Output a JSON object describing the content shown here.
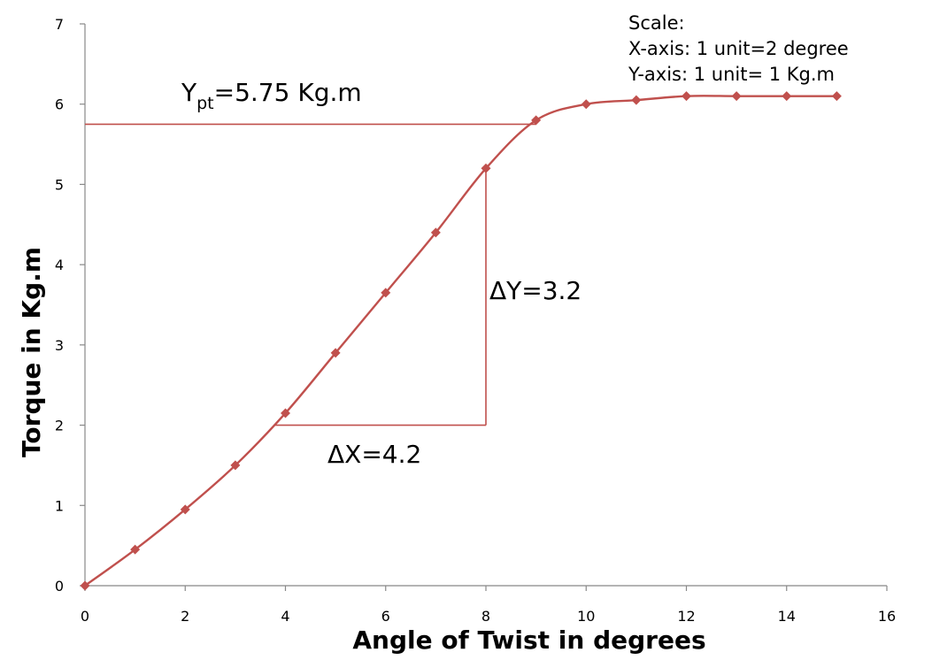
{
  "chart_data": {
    "type": "line",
    "xlabel": "Angle of Twist in degrees",
    "ylabel": "Torque in Kg.m",
    "xlim": [
      0,
      16
    ],
    "ylim": [
      0,
      7
    ],
    "xticks": [
      0,
      2,
      4,
      6,
      8,
      10,
      12,
      14,
      16
    ],
    "yticks": [
      0,
      1,
      2,
      3,
      4,
      5,
      6,
      7
    ],
    "grid": false,
    "series": [
      {
        "color": "#c0504d",
        "marker": "diamond",
        "smooth": true,
        "x": [
          0,
          1,
          2,
          3,
          4,
          5,
          6,
          7,
          8,
          9,
          10,
          11,
          12,
          13,
          14,
          15
        ],
        "y": [
          0,
          0.45,
          0.95,
          1.5,
          2.15,
          2.9,
          3.65,
          4.4,
          5.2,
          5.8,
          6.0,
          6.05,
          6.1,
          6.1,
          6.1,
          6.1
        ]
      }
    ],
    "annotations": {
      "yield_line": {
        "y": 5.75,
        "x_end": 9,
        "color": "#c0504d",
        "label_main": "Y",
        "label_sub": "pt",
        "label_rest": "=5.75 Kg.m"
      },
      "slope_triangle": {
        "x1": 3.8,
        "x2": 8,
        "y_base": 2,
        "y_top": 5.2,
        "color": "#c0504d",
        "dx_label": "ΔX=4.2",
        "dy_label": "ΔY=3.2"
      },
      "scale_note": [
        "Scale:",
        "X-axis: 1 unit=2 degree",
        "Y-axis: 1 unit= 1 Kg.m"
      ]
    }
  }
}
